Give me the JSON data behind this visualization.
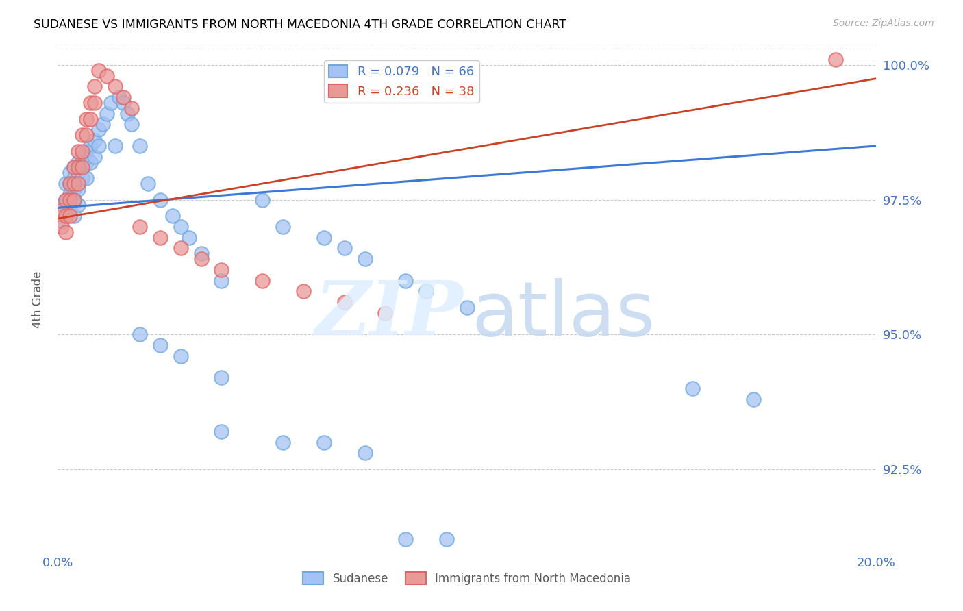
{
  "title": "SUDANESE VS IMMIGRANTS FROM NORTH MACEDONIA 4TH GRADE CORRELATION CHART",
  "source": "Source: ZipAtlas.com",
  "ylabel": "4th Grade",
  "xlim": [
    0.0,
    0.2
  ],
  "ylim": [
    0.91,
    1.003
  ],
  "yticks": [
    0.925,
    0.95,
    0.975,
    1.0
  ],
  "ytick_labels": [
    "92.5%",
    "95.0%",
    "97.5%",
    "100.0%"
  ],
  "xticks": [
    0.0,
    0.05,
    0.1,
    0.15,
    0.2
  ],
  "xtick_labels": [
    "0.0%",
    "",
    "",
    "",
    "20.0%"
  ],
  "legend_blue_r": "R = 0.079",
  "legend_blue_n": "N = 66",
  "legend_pink_r": "R = 0.236",
  "legend_pink_n": "N = 38",
  "blue_line_color": "#3c78d8",
  "pink_line_color": "#cc4125",
  "blue_trendline_x": [
    0.0,
    0.2
  ],
  "blue_trendline_y": [
    0.9735,
    0.985
  ],
  "pink_trendline_x": [
    0.0,
    0.2
  ],
  "pink_trendline_y": [
    0.9715,
    0.9975
  ],
  "background_color": "#ffffff",
  "grid_color": "#cccccc",
  "title_color": "#000000",
  "axis_label_color": "#595959",
  "tick_label_color": "#4472c4",
  "right_tick_label_color": "#4472c4",
  "legend_label_color_blue": "#4472c4",
  "legend_label_color_pink": "#cc4125",
  "blue_x": [
    0.001,
    0.001,
    0.002,
    0.002,
    0.002,
    0.003,
    0.003,
    0.003,
    0.003,
    0.004,
    0.004,
    0.004,
    0.004,
    0.004,
    0.005,
    0.005,
    0.005,
    0.005,
    0.006,
    0.006,
    0.006,
    0.007,
    0.007,
    0.007,
    0.008,
    0.008,
    0.009,
    0.009,
    0.01,
    0.01,
    0.011,
    0.012,
    0.013,
    0.014,
    0.015,
    0.016,
    0.017,
    0.018,
    0.02,
    0.022,
    0.025,
    0.028,
    0.03,
    0.032,
    0.035,
    0.04,
    0.05,
    0.055,
    0.065,
    0.07,
    0.075,
    0.085,
    0.09,
    0.1,
    0.02,
    0.025,
    0.03,
    0.04,
    0.155,
    0.17,
    0.04,
    0.055,
    0.065,
    0.075,
    0.085,
    0.095
  ],
  "blue_y": [
    0.974,
    0.971,
    0.978,
    0.975,
    0.972,
    0.98,
    0.978,
    0.976,
    0.973,
    0.981,
    0.979,
    0.977,
    0.975,
    0.972,
    0.982,
    0.98,
    0.977,
    0.974,
    0.983,
    0.981,
    0.979,
    0.984,
    0.982,
    0.979,
    0.985,
    0.982,
    0.986,
    0.983,
    0.988,
    0.985,
    0.989,
    0.991,
    0.993,
    0.985,
    0.994,
    0.993,
    0.991,
    0.989,
    0.985,
    0.978,
    0.975,
    0.972,
    0.97,
    0.968,
    0.965,
    0.96,
    0.975,
    0.97,
    0.968,
    0.966,
    0.964,
    0.96,
    0.958,
    0.955,
    0.95,
    0.948,
    0.946,
    0.942,
    0.94,
    0.938,
    0.932,
    0.93,
    0.93,
    0.928,
    0.912,
    0.912
  ],
  "pink_x": [
    0.001,
    0.001,
    0.002,
    0.002,
    0.002,
    0.003,
    0.003,
    0.003,
    0.004,
    0.004,
    0.004,
    0.005,
    0.005,
    0.005,
    0.006,
    0.006,
    0.006,
    0.007,
    0.007,
    0.008,
    0.008,
    0.009,
    0.009,
    0.01,
    0.012,
    0.014,
    0.016,
    0.018,
    0.02,
    0.025,
    0.03,
    0.035,
    0.04,
    0.05,
    0.06,
    0.07,
    0.08,
    0.19
  ],
  "pink_y": [
    0.973,
    0.97,
    0.975,
    0.972,
    0.969,
    0.978,
    0.975,
    0.972,
    0.981,
    0.978,
    0.975,
    0.984,
    0.981,
    0.978,
    0.987,
    0.984,
    0.981,
    0.99,
    0.987,
    0.993,
    0.99,
    0.996,
    0.993,
    0.999,
    0.998,
    0.996,
    0.994,
    0.992,
    0.97,
    0.968,
    0.966,
    0.964,
    0.962,
    0.96,
    0.958,
    0.956,
    0.954,
    1.001
  ]
}
